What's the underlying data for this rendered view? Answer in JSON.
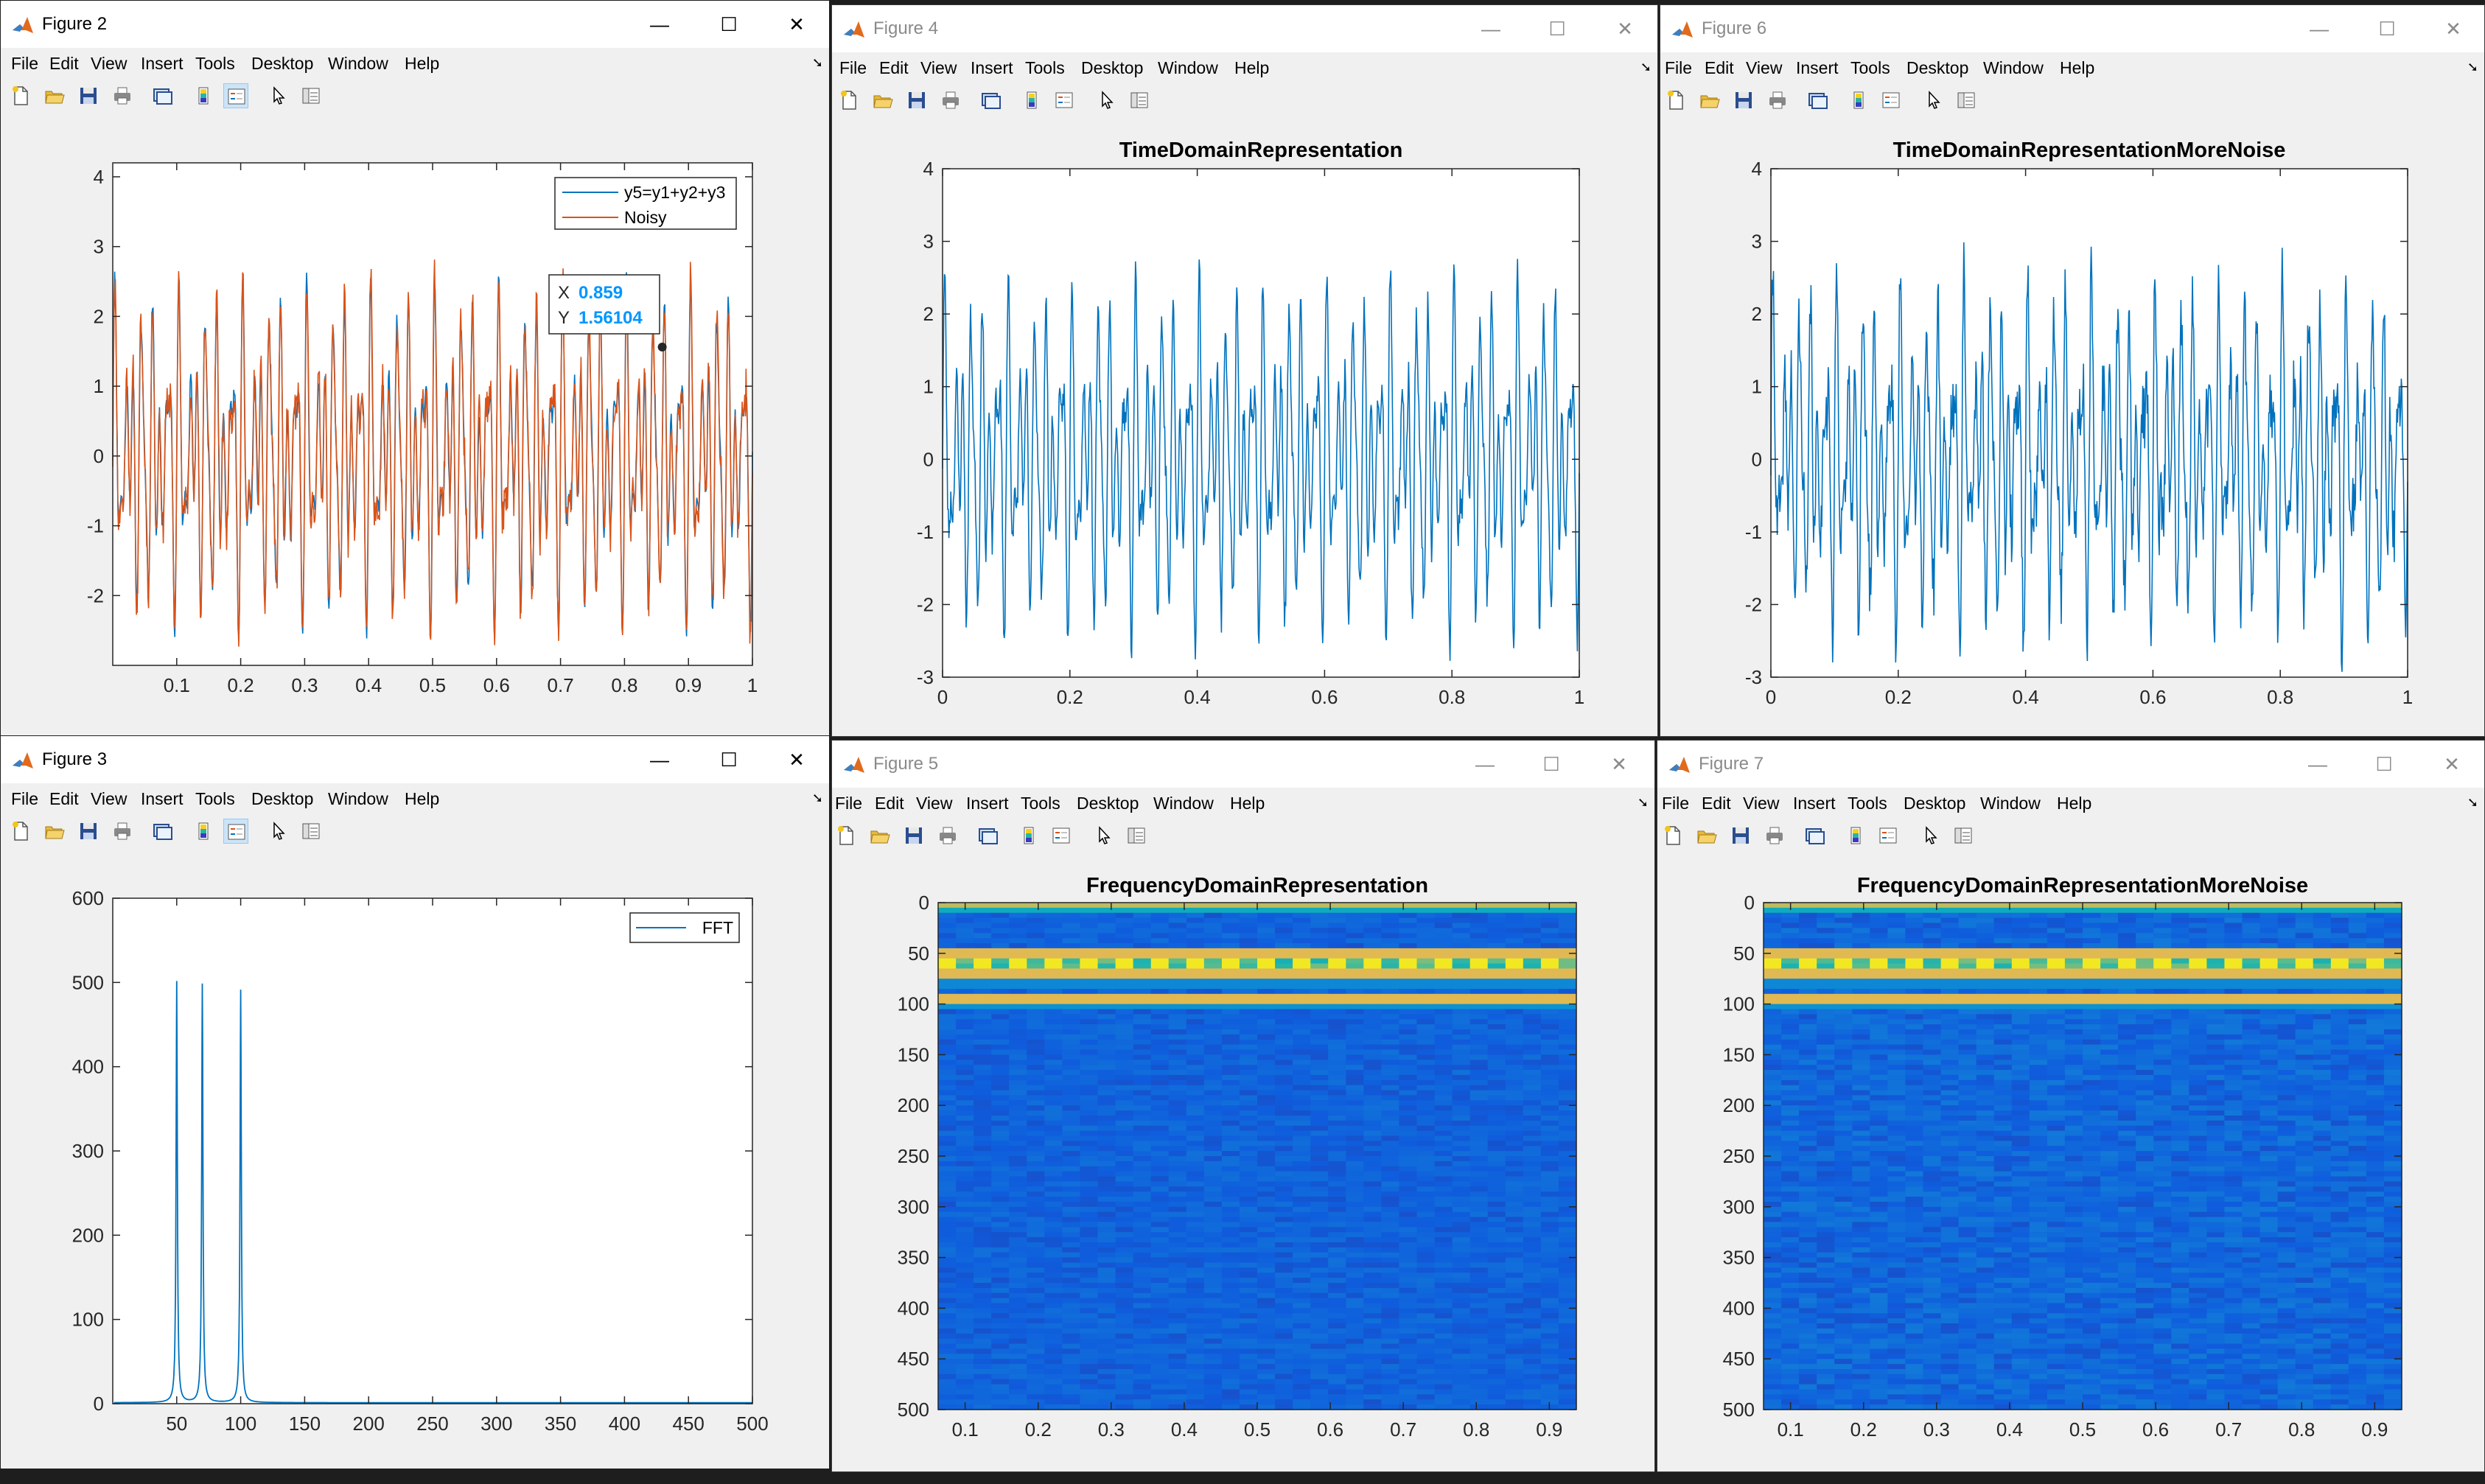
{
  "menus": [
    "File",
    "Edit",
    "View",
    "Insert",
    "Tools",
    "Desktop",
    "Window",
    "Help"
  ],
  "window_controls": {
    "minimize": "—",
    "maximize": "☐",
    "close": "✕"
  },
  "toolbar_tools": [
    "new-file",
    "open-file",
    "save",
    "print",
    "link-plot",
    "colorbar",
    "legend",
    "edit-plot",
    "property-inspector"
  ],
  "colors": {
    "blue": "#0072bd",
    "orange": "#d95319",
    "accent": "#0096ff"
  },
  "figures": [
    {
      "id": "fig2",
      "title": "Figure 2",
      "active": true,
      "chart_data": {
        "type": "line",
        "title": "",
        "xlim": [
          0,
          1
        ],
        "ylim": [
          -3,
          4.2
        ],
        "xticks": [
          "0.1",
          "0.2",
          "0.3",
          "0.4",
          "0.5",
          "0.6",
          "0.7",
          "0.8",
          "0.9",
          "1"
        ],
        "yticks": [
          "4",
          "3",
          "2",
          "1",
          "0",
          "-1",
          "-2"
        ],
        "series": [
          {
            "name": "y5=y1+y2+y3",
            "color": "#0072bd"
          },
          {
            "name": "Noisy",
            "color": "#d95319"
          }
        ],
        "legend": "top-right",
        "datatip": {
          "x_label": "X",
          "x_value": "0.859",
          "y_label": "Y",
          "y_value": "1.56104"
        }
      }
    },
    {
      "id": "fig4",
      "title": "Figure 4",
      "active": false,
      "chart_data": {
        "type": "line",
        "title": "TimeDomainRepresentation",
        "xlim": [
          0,
          1
        ],
        "ylim": [
          -3,
          4
        ],
        "xticks": [
          "0",
          "0.2",
          "0.4",
          "0.6",
          "0.8",
          "1"
        ],
        "yticks": [
          "4",
          "3",
          "2",
          "1",
          "0",
          "-1",
          "-2",
          "-3"
        ],
        "series": [
          {
            "color": "#0072bd"
          }
        ]
      }
    },
    {
      "id": "fig6",
      "title": "Figure 6",
      "active": false,
      "chart_data": {
        "type": "line",
        "title": "TimeDomainRepresentationMoreNoise",
        "xlim": [
          0,
          1
        ],
        "ylim": [
          -3,
          4
        ],
        "xticks": [
          "0",
          "0.2",
          "0.4",
          "0.6",
          "0.8",
          "1"
        ],
        "yticks": [
          "4",
          "3",
          "2",
          "1",
          "0",
          "-1",
          "-2",
          "-3"
        ],
        "series": [
          {
            "color": "#0072bd"
          }
        ]
      }
    },
    {
      "id": "fig3",
      "title": "Figure 3",
      "active": true,
      "chart_data": {
        "type": "line",
        "title": "",
        "xlim": [
          0,
          500
        ],
        "ylim": [
          0,
          600
        ],
        "xticks": [
          "50",
          "100",
          "150",
          "200",
          "250",
          "300",
          "350",
          "400",
          "450",
          "500"
        ],
        "yticks": [
          "600",
          "500",
          "400",
          "300",
          "200",
          "100",
          "0"
        ],
        "series": [
          {
            "name": "FFT",
            "color": "#0072bd",
            "peaks": [
              {
                "x": 50,
                "y": 500
              },
              {
                "x": 70,
                "y": 497
              },
              {
                "x": 100,
                "y": 490
              }
            ]
          }
        ],
        "legend": "top-right"
      }
    },
    {
      "id": "fig5",
      "title": "Figure 5",
      "active": false,
      "chart_data": {
        "type": "heatmap",
        "title": "FrequencyDomainRepresentation",
        "xticks": [
          "0.1",
          "0.2",
          "0.3",
          "0.4",
          "0.5",
          "0.6",
          "0.7",
          "0.8",
          "0.9"
        ],
        "yticks": [
          "0",
          "50",
          "100",
          "150",
          "200",
          "250",
          "300",
          "350",
          "400",
          "450",
          "500"
        ],
        "ylim": [
          0,
          500
        ]
      }
    },
    {
      "id": "fig7",
      "title": "Figure 7",
      "active": false,
      "chart_data": {
        "type": "heatmap",
        "title": "FrequencyDomainRepresentationMoreNoise",
        "xticks": [
          "0.1",
          "0.2",
          "0.3",
          "0.4",
          "0.5",
          "0.6",
          "0.7",
          "0.8",
          "0.9"
        ],
        "yticks": [
          "0",
          "50",
          "100",
          "150",
          "200",
          "250",
          "300",
          "350",
          "400",
          "450",
          "500"
        ],
        "ylim": [
          0,
          500
        ]
      }
    }
  ]
}
